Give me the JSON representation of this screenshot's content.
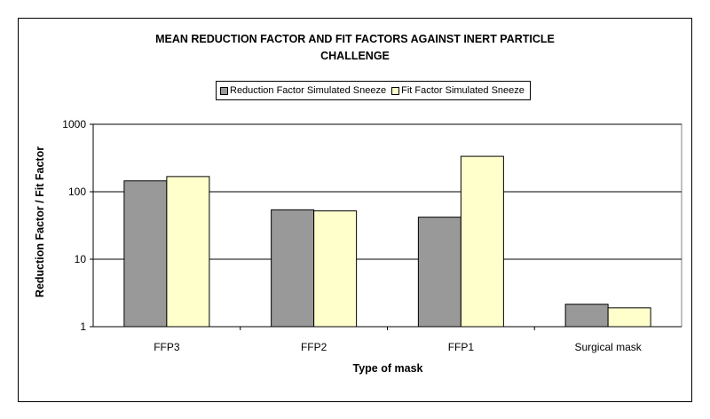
{
  "chart_data": {
    "type": "bar",
    "title_lines": [
      "MEAN REDUCTION FACTOR AND FIT FACTORS AGAINST INERT PARTICLE",
      "CHALLENGE"
    ],
    "xlabel": "Type of mask",
    "ylabel": "Reduction Factor / Fit Factor",
    "yscale": "log",
    "ylim": [
      1,
      1000
    ],
    "yticks": [
      "1",
      "10",
      "100",
      "1000"
    ],
    "categories": [
      "FFP3",
      "FFP2",
      "FFP1",
      "Surgical mask"
    ],
    "series": [
      {
        "name": "Reduction Factor Simulated Sneeze",
        "color": "#999999",
        "values": [
          145,
          54,
          42,
          2.15
        ]
      },
      {
        "name": "Fit Factor Simulated Sneeze",
        "color": "#ffffcc",
        "values": [
          168,
          52,
          335,
          1.9
        ]
      }
    ],
    "grid": true,
    "legend_position": "top-center"
  }
}
